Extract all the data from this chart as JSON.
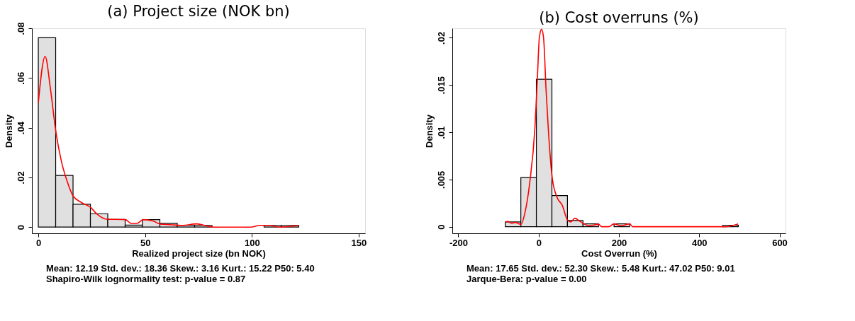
{
  "chart_data": [
    {
      "type": "histogram",
      "title": "(a) Project size (NOK bn)",
      "xlabel": "Realized project size (bn NOK)",
      "ylabel": "Density",
      "xlim": [
        -3,
        153
      ],
      "xticks": [
        0,
        50,
        100,
        150
      ],
      "ylim": [
        -0.0025,
        0.08
      ],
      "yticks": [
        0,
        {
          "value": 0.02,
          "label": ".02"
        },
        {
          "value": 0.04,
          "label": ".04"
        },
        {
          "value": 0.06,
          "label": ".06"
        },
        {
          "value": 0.08,
          "label": ".08"
        }
      ],
      "series": [
        {
          "type": "histogram",
          "color": "#e0e0e0",
          "bins": [
            0,
            8.13,
            16.26,
            24.39,
            32.52,
            40.65,
            48.78,
            56.91,
            65.04,
            73.17,
            81.3,
            89.43,
            97.56,
            105.69,
            113.82,
            121.95
          ],
          "values": [
            0.0762,
            0.0208,
            0.0092,
            0.0054,
            0.0031,
            0.0008,
            0.003,
            0.0015,
            0.0007,
            0.0007,
            0,
            0,
            0,
            0.0007,
            0.0007
          ]
        },
        {
          "type": "line",
          "color": "#ff0000",
          "x": [
            0,
            3.2,
            5.7,
            8.2,
            10.8,
            13.1,
            16.3,
            20,
            24.4,
            27.4,
            32,
            40.8,
            43.4,
            46.2,
            49.1,
            53.7,
            57.1,
            61.6,
            67.4,
            74.2,
            78.8,
            82.2,
            99.3,
            103.9,
            108.4,
            113,
            122
          ],
          "values": [
            0.05,
            0.0687,
            0.0555,
            0.0385,
            0.0265,
            0.0195,
            0.0125,
            0.01,
            0.008,
            0.0053,
            0.0032,
            0.003,
            0.0015,
            0.0015,
            0.003,
            0.0025,
            0.0012,
            0.001,
            0.0007,
            0.0013,
            0.0005,
            0,
            0,
            0.0007,
            0.0007,
            0,
            0.0007
          ]
        }
      ],
      "annotations": [
        "Mean: 12.19   Std. dev.: 18.36   Skew.: 3.16   Kurt.: 15.22   P50: 5.40",
        "Shapiro-Wilk lognormality test: p-value = 0.87"
      ]
    },
    {
      "type": "histogram",
      "title": "(b) Cost overruns (%)",
      "xlabel": "Cost Overrun (%)",
      "ylabel": "Density",
      "xlim": [
        -215,
        615
      ],
      "xticks": [
        -200,
        0,
        200,
        400,
        600
      ],
      "ylim": [
        -0.0007,
        0.021
      ],
      "yticks": [
        0,
        {
          "value": 0.005,
          "label": ".005"
        },
        {
          "value": 0.01,
          "label": ".01"
        },
        {
          "value": 0.015,
          "label": ".015"
        },
        {
          "value": 0.02,
          "label": ".02"
        }
      ],
      "series": [
        {
          "type": "histogram",
          "color": "#e0e0e0",
          "bins": [
            -83,
            -44.3,
            -5.6,
            33.1,
            71.8,
            110.5,
            149.2,
            187.9,
            226.6,
            265.3,
            304,
            342.7,
            381.4,
            420.1,
            458.8,
            497.5
          ],
          "values": [
            0.0005,
            0.0052,
            0.0156,
            0.0033,
            0.00066,
            0.0003,
            0,
            0.0003,
            0,
            0,
            0,
            0,
            0,
            0,
            0.00016
          ]
        },
        {
          "type": "line",
          "color": "#ff0000",
          "x": [
            -83,
            -77,
            -68,
            -58,
            -44,
            -34,
            -22,
            -9.2,
            -3,
            1.8,
            7.4,
            12.3,
            18.5,
            24.6,
            33.8,
            46,
            58.5,
            72,
            80,
            90.5,
            101.5,
            126,
            149.5,
            157,
            175,
            187.7,
            206,
            227,
            234,
            465,
            497
          ],
          "values": [
            0.0005,
            0.00056,
            0.00037,
            0.00045,
            0.00024,
            0.0015,
            0.0047,
            0.0105,
            0.0158,
            0.02,
            0.0209,
            0.02,
            0.0145,
            0.01,
            0.0052,
            0.0031,
            0.0023,
            0.0007,
            0.0005,
            0.0009,
            0.0006,
            0.0001,
            0.00026,
            0,
            0,
            0.0003,
            0.0001,
            0.0003,
            0,
            0,
            0.0003
          ]
        }
      ],
      "annotations": [
        "Mean: 17.65   Std. dev.: 52.30   Skew.: 5.48   Kurt.: 47.02   P50: 9.01",
        "Jarque-Bera: p-value = 0.00"
      ]
    }
  ]
}
